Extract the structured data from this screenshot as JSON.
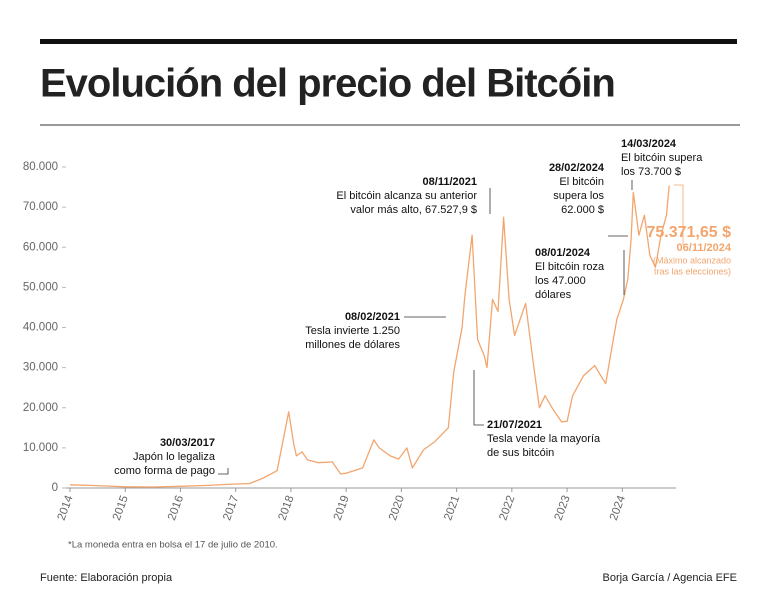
{
  "chart_data": {
    "type": "line",
    "title": "Evolución del precio del Bitcóin",
    "x": [
      2014.0,
      2014.5,
      2015.0,
      2015.5,
      2016.0,
      2016.5,
      2017.0,
      2017.25,
      2017.5,
      2017.75,
      2017.96,
      2018.05,
      2018.1,
      2018.2,
      2018.3,
      2018.5,
      2018.75,
      2018.9,
      2019.0,
      2019.3,
      2019.5,
      2019.6,
      2019.8,
      2019.95,
      2020.1,
      2020.2,
      2020.4,
      2020.6,
      2020.85,
      2020.95,
      2021.1,
      2021.15,
      2021.28,
      2021.38,
      2021.5,
      2021.55,
      2021.65,
      2021.75,
      2021.85,
      2021.95,
      2022.05,
      2022.25,
      2022.4,
      2022.5,
      2022.6,
      2022.75,
      2022.9,
      2023.0,
      2023.1,
      2023.3,
      2023.5,
      2023.7,
      2023.8,
      2023.9,
      2024.02,
      2024.1,
      2024.16,
      2024.2,
      2024.3,
      2024.4,
      2024.5,
      2024.6,
      2024.7,
      2024.8,
      2024.85
    ],
    "series": [
      {
        "color": "#f2a66e",
        "values": [
          800,
          600,
          300,
          250,
          430,
          650,
          1000,
          1100,
          2500,
          4300,
          19000,
          11000,
          8000,
          9000,
          7000,
          6300,
          6500,
          3500,
          3700,
          5000,
          12000,
          10000,
          8000,
          7200,
          10000,
          5000,
          9500,
          11500,
          15000,
          29000,
          40000,
          48000,
          63000,
          37000,
          33000,
          30000,
          47000,
          44000,
          67500,
          47000,
          38000,
          46000,
          30000,
          20000,
          23000,
          19500,
          16500,
          16600,
          23000,
          28000,
          30500,
          26000,
          34000,
          42000,
          47000,
          52000,
          62000,
          73700,
          63000,
          68000,
          58000,
          55000,
          63000,
          68000,
          75371.65
        ]
      }
    ],
    "xlim": [
      2014,
      2024.9
    ],
    "xticks": [
      2014,
      2015,
      2016,
      2017,
      2018,
      2019,
      2020,
      2021,
      2022,
      2023,
      2024
    ],
    "ylim": [
      0,
      80000
    ],
    "yticks": [
      0,
      {
        "value": 10000,
        "label": "10.000"
      },
      {
        "value": 20000,
        "label": "20.000"
      },
      {
        "value": 30000,
        "label": "30.000"
      },
      {
        "value": 40000,
        "label": "40.000"
      },
      {
        "value": 50000,
        "label": "50.000"
      },
      {
        "value": 60000,
        "label": "60.000"
      },
      {
        "value": 70000,
        "label": "70.000"
      },
      {
        "value": 80000,
        "label": "80.000"
      }
    ],
    "annotations": [
      {
        "date": "30/03/2017",
        "lines": [
          "Japón lo legaliza",
          "como forma de pago"
        ]
      },
      {
        "date": "08/02/2021",
        "lines": [
          "Tesla invierte 1.250",
          "millones de dólares"
        ]
      },
      {
        "date": "08/11/2021",
        "lines": [
          "El bitcóin alcanza su anterior",
          "valor más alto, 67.527,9 $"
        ]
      },
      {
        "date": "21/07/2021",
        "lines": [
          "Tesla vende la mayoría",
          "de sus bitcóin"
        ]
      },
      {
        "date": "08/01/2024",
        "lines": [
          "El bitcóin roza",
          "los 47.000",
          "dólares"
        ]
      },
      {
        "date": "28/02/2024",
        "lines": [
          "El bitcóin",
          "supera los",
          "62.000 $"
        ]
      },
      {
        "date": "14/03/2024",
        "lines": [
          "El bitcóin supera",
          "los 73.700 $"
        ]
      }
    ],
    "last_value_label": "75.371,65 $",
    "last_date": "06/11/2024",
    "last_note": [
      "(Máximo alcanzado",
      "tras las elecciones)"
    ],
    "footnote": "*La moneda entra en bolsa el 17 de julio de 2010.",
    "source": "Fuente: Elaboración propia",
    "credit": "Borja García / Agencia EFE"
  }
}
